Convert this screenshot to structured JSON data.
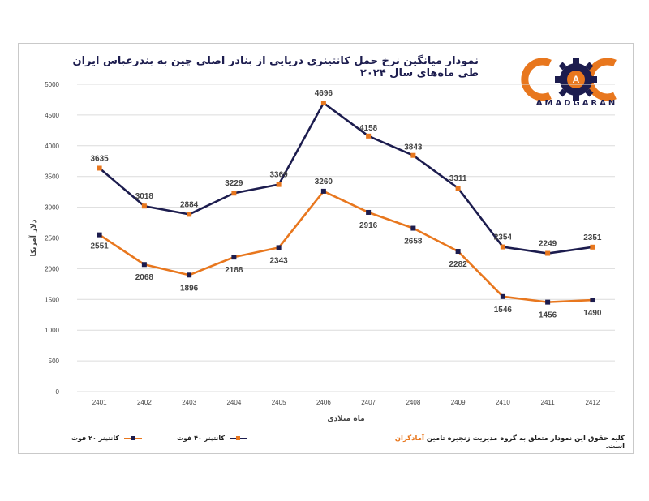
{
  "header": {
    "title": "نمودار میانگین نرخ حمل کانتینری دریایی از بنادر اصلی چین به بندرعباس ایران طی ماه‌های سال ۲۰۲۴"
  },
  "logo": {
    "text": "AMADGARAN",
    "letter": "A"
  },
  "legend": {
    "item_20ft": "کانتینر ۲۰ فوت",
    "item_40ft": "کانتینر ۴۰ فوت"
  },
  "footer": {
    "copyright_before": "کلیه حقوق این نمودار متعلق به گروه مدیریت زنجیره تامین ",
    "copyright_brand": "آمادگران",
    "copyright_after": " است."
  },
  "colors": {
    "navy": "#1c1c4e",
    "orange": "#e8771e",
    "grid": "#dcdcdc"
  },
  "chart_data": {
    "type": "line",
    "title": "نمودار میانگین نرخ حمل کانتینری دریایی از بنادر اصلی چین به بندرعباس ایران طی ماه‌های سال ۲۰۲۴",
    "xlabel": "ماه میلادی",
    "ylabel": "دلار آمریکا",
    "ylim": [
      0,
      5000
    ],
    "yticks": [
      0,
      500,
      1000,
      1500,
      2000,
      2500,
      3000,
      3500,
      4000,
      4500,
      5000
    ],
    "categories": [
      "2401",
      "2402",
      "2403",
      "2404",
      "2405",
      "2406",
      "2407",
      "2408",
      "2409",
      "2410",
      "2411",
      "2412"
    ],
    "grid": true,
    "legend_position": "bottom-left",
    "series": [
      {
        "name": "کانتینر ۴۰ فوت",
        "color": "#1c1c4e",
        "marker_color": "#e8771e",
        "values": [
          3635,
          3018,
          2884,
          3229,
          3369,
          4696,
          4158,
          3843,
          3311,
          2354,
          2249,
          2351
        ]
      },
      {
        "name": "کانتینر ۲۰ فوت",
        "color": "#e8771e",
        "marker_color": "#1c1c4e",
        "values": [
          2551,
          2068,
          1896,
          2188,
          2343,
          3260,
          2916,
          2658,
          2282,
          1546,
          1456,
          1490
        ]
      }
    ]
  }
}
